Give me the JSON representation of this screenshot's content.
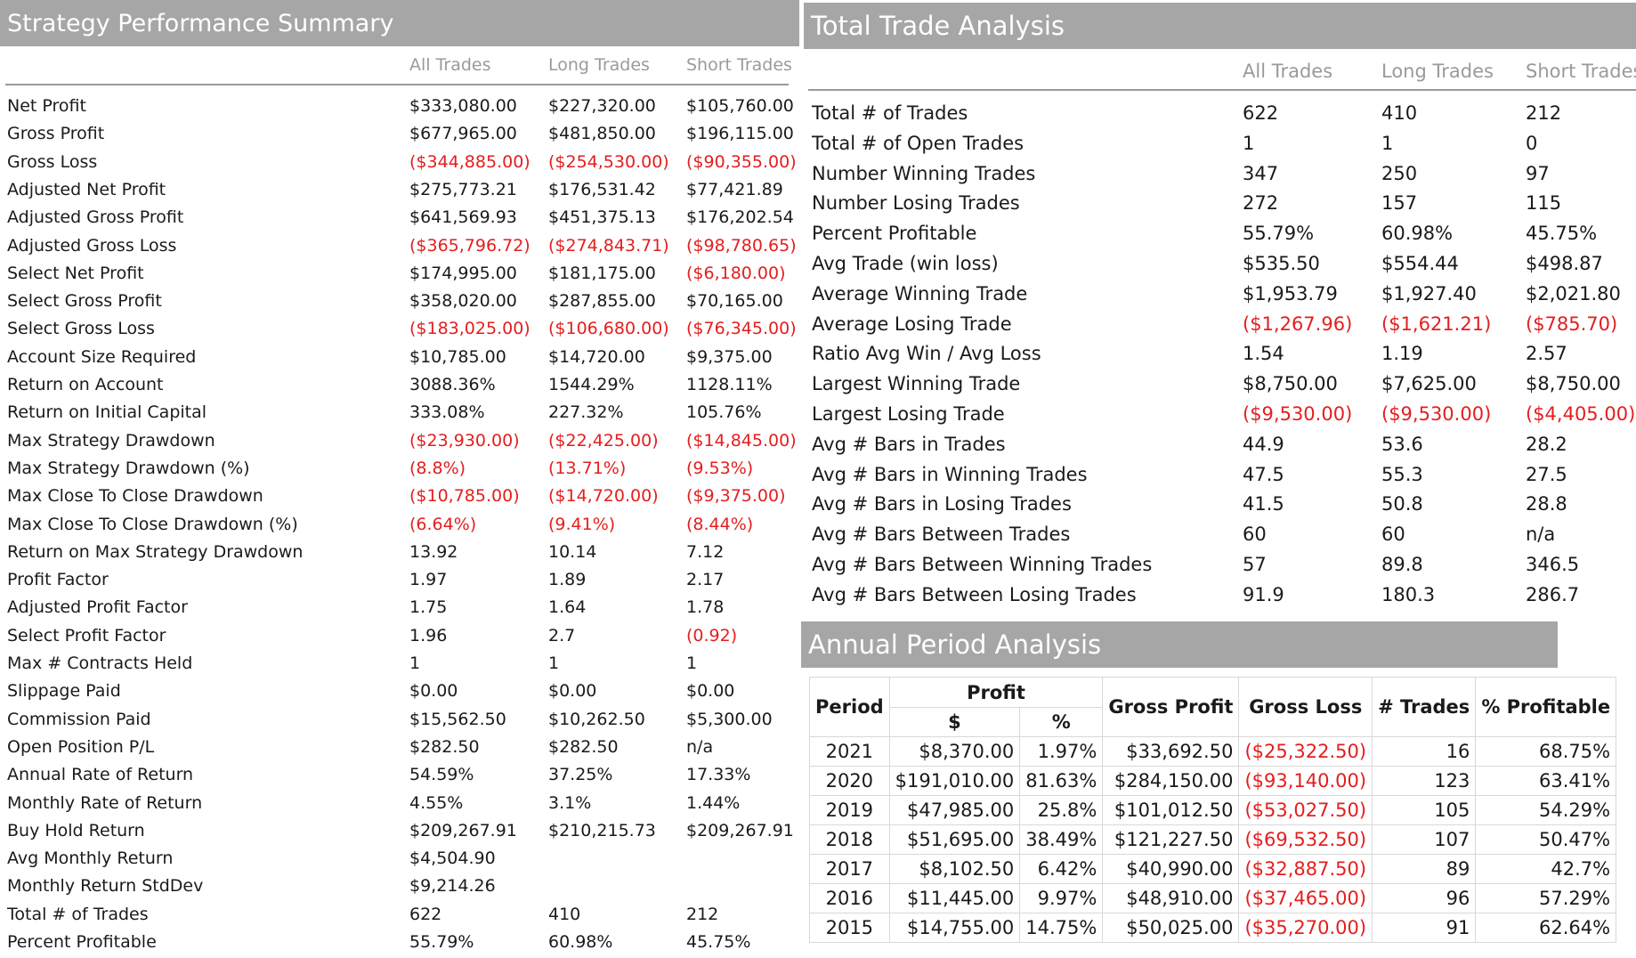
{
  "strategy_summary": {
    "title": "Strategy Performance Summary",
    "columns": [
      "All Trades",
      "Long Trades",
      "Short Trades"
    ],
    "rows": [
      {
        "label": "Net Profit",
        "all": "$333,080.00",
        "long": "$227,320.00",
        "short": "$105,760.00"
      },
      {
        "label": "Gross Profit",
        "all": "$677,965.00",
        "long": "$481,850.00",
        "short": "$196,115.00"
      },
      {
        "label": "Gross Loss",
        "all": "($344,885.00)",
        "long": "($254,530.00)",
        "short": "($90,355.00)"
      },
      {
        "label": "Adjusted Net Profit",
        "all": "$275,773.21",
        "long": "$176,531.42",
        "short": "$77,421.89"
      },
      {
        "label": "Adjusted Gross Profit",
        "all": "$641,569.93",
        "long": "$451,375.13",
        "short": "$176,202.54"
      },
      {
        "label": "Adjusted Gross Loss",
        "all": "($365,796.72)",
        "long": "($274,843.71)",
        "short": "($98,780.65)"
      },
      {
        "label": "Select Net Profit",
        "all": "$174,995.00",
        "long": "$181,175.00",
        "short": "($6,180.00)"
      },
      {
        "label": "Select Gross Profit",
        "all": "$358,020.00",
        "long": "$287,855.00",
        "short": "$70,165.00"
      },
      {
        "label": "Select Gross Loss",
        "all": "($183,025.00)",
        "long": "($106,680.00)",
        "short": "($76,345.00)"
      },
      {
        "label": "Account Size Required",
        "all": "$10,785.00",
        "long": "$14,720.00",
        "short": "$9,375.00"
      },
      {
        "label": "Return on Account",
        "all": "3088.36%",
        "long": "1544.29%",
        "short": "1128.11%"
      },
      {
        "label": "Return on Initial Capital",
        "all": "333.08%",
        "long": "227.32%",
        "short": "105.76%"
      },
      {
        "label": "Max Strategy Drawdown",
        "all": "($23,930.00)",
        "long": "($22,425.00)",
        "short": "($14,845.00)"
      },
      {
        "label": "Max Strategy Drawdown (%)",
        "all": "(8.8%)",
        "long": "(13.71%)",
        "short": "(9.53%)"
      },
      {
        "label": "Max Close To Close Drawdown",
        "all": "($10,785.00)",
        "long": "($14,720.00)",
        "short": "($9,375.00)"
      },
      {
        "label": "Max Close To Close Drawdown (%)",
        "all": "(6.64%)",
        "long": "(9.41%)",
        "short": "(8.44%)"
      },
      {
        "label": "Return on Max Strategy Drawdown",
        "all": "13.92",
        "long": "10.14",
        "short": "7.12"
      },
      {
        "label": "Profit Factor",
        "all": "1.97",
        "long": "1.89",
        "short": "2.17"
      },
      {
        "label": "Adjusted Profit Factor",
        "all": "1.75",
        "long": "1.64",
        "short": "1.78"
      },
      {
        "label": "Select Profit Factor",
        "all": "1.96",
        "long": "2.7",
        "short": "(0.92)"
      },
      {
        "label": "Max # Contracts Held",
        "all": "1",
        "long": "1",
        "short": "1"
      },
      {
        "label": "Slippage Paid",
        "all": "$0.00",
        "long": "$0.00",
        "short": "$0.00"
      },
      {
        "label": "Commission Paid",
        "all": "$15,562.50",
        "long": "$10,262.50",
        "short": "$5,300.00"
      },
      {
        "label": "Open Position P/L",
        "all": "$282.50",
        "long": "$282.50",
        "short": "n/a"
      },
      {
        "label": "Annual Rate of Return",
        "all": "54.59%",
        "long": "37.25%",
        "short": "17.33%"
      },
      {
        "label": "Monthly Rate of Return",
        "all": "4.55%",
        "long": "3.1%",
        "short": "1.44%"
      },
      {
        "label": "Buy  Hold Return",
        "all": "$209,267.91",
        "long": "$210,215.73",
        "short": "$209,267.91"
      },
      {
        "label": "Avg Monthly Return",
        "all": "$4,504.90",
        "long": "",
        "short": ""
      },
      {
        "label": "Monthly Return StdDev",
        "all": "$9,214.26",
        "long": "",
        "short": ""
      },
      {
        "label": "Total # of Trades",
        "all": "622",
        "long": "410",
        "short": "212"
      },
      {
        "label": "Percent Profitable",
        "all": "55.79%",
        "long": "60.98%",
        "short": "45.75%"
      }
    ]
  },
  "total_trade_analysis": {
    "title": "Total Trade Analysis",
    "columns": [
      "All Trades",
      "Long Trades",
      "Short Trades"
    ],
    "rows": [
      {
        "label": "Total # of Trades",
        "all": "622",
        "long": "410",
        "short": "212"
      },
      {
        "label": "Total # of Open Trades",
        "all": "1",
        "long": "1",
        "short": "0"
      },
      {
        "label": "Number Winning Trades",
        "all": "347",
        "long": "250",
        "short": "97"
      },
      {
        "label": "Number Losing Trades",
        "all": "272",
        "long": "157",
        "short": "115"
      },
      {
        "label": "Percent Profitable",
        "all": "55.79%",
        "long": "60.98%",
        "short": "45.75%"
      },
      {
        "label": "Avg Trade (win  loss)",
        "all": "$535.50",
        "long": "$554.44",
        "short": "$498.87"
      },
      {
        "label": "Average Winning Trade",
        "all": "$1,953.79",
        "long": "$1,927.40",
        "short": "$2,021.80"
      },
      {
        "label": "Average Losing Trade",
        "all": "($1,267.96)",
        "long": "($1,621.21)",
        "short": "($785.70)"
      },
      {
        "label": "Ratio Avg Win / Avg Loss",
        "all": "1.54",
        "long": "1.19",
        "short": "2.57"
      },
      {
        "label": "Largest Winning Trade",
        "all": "$8,750.00",
        "long": "$7,625.00",
        "short": "$8,750.00"
      },
      {
        "label": "Largest Losing Trade",
        "all": "($9,530.00)",
        "long": "($9,530.00)",
        "short": "($4,405.00)"
      },
      {
        "label": "Avg # Bars in Trades",
        "all": "44.9",
        "long": "53.6",
        "short": "28.2"
      },
      {
        "label": "Avg # Bars in Winning Trades",
        "all": "47.5",
        "long": "55.3",
        "short": "27.5"
      },
      {
        "label": "Avg # Bars in Losing Trades",
        "all": "41.5",
        "long": "50.8",
        "short": "28.8"
      },
      {
        "label": "Avg # Bars Between Trades",
        "all": "60",
        "long": "60",
        "short": "n/a"
      },
      {
        "label": "Avg # Bars Between Winning Trades",
        "all": "57",
        "long": "89.8",
        "short": "346.5"
      },
      {
        "label": "Avg # Bars Between Losing Trades",
        "all": "91.9",
        "long": "180.3",
        "short": "286.7"
      }
    ]
  },
  "annual_period_analysis": {
    "title": "Annual Period Analysis",
    "headers": {
      "period": "Period",
      "profit": "Profit",
      "dollar": "$",
      "percent": "%",
      "gross_profit": "Gross Profit",
      "gross_loss": "Gross Loss",
      "trades": "# Trades",
      "pct_profitable": "% Profitable"
    },
    "rows": [
      {
        "period": "2021",
        "profit": "$8,370.00",
        "pct": "1.97%",
        "gross_profit": "$33,692.50",
        "gross_loss": "($25,322.50)",
        "trades": "16",
        "pct_profitable": "68.75%"
      },
      {
        "period": "2020",
        "profit": "$191,010.00",
        "pct": "81.63%",
        "gross_profit": "$284,150.00",
        "gross_loss": "($93,140.00)",
        "trades": "123",
        "pct_profitable": "63.41%"
      },
      {
        "period": "2019",
        "profit": "$47,985.00",
        "pct": "25.8%",
        "gross_profit": "$101,012.50",
        "gross_loss": "($53,027.50)",
        "trades": "105",
        "pct_profitable": "54.29%"
      },
      {
        "period": "2018",
        "profit": "$51,695.00",
        "pct": "38.49%",
        "gross_profit": "$121,227.50",
        "gross_loss": "($69,532.50)",
        "trades": "107",
        "pct_profitable": "50.47%"
      },
      {
        "period": "2017",
        "profit": "$8,102.50",
        "pct": "6.42%",
        "gross_profit": "$40,990.00",
        "gross_loss": "($32,887.50)",
        "trades": "89",
        "pct_profitable": "42.7%"
      },
      {
        "period": "2016",
        "profit": "$11,445.00",
        "pct": "9.97%",
        "gross_profit": "$48,910.00",
        "gross_loss": "($37,465.00)",
        "trades": "96",
        "pct_profitable": "57.29%"
      },
      {
        "period": "2015",
        "profit": "$14,755.00",
        "pct": "14.75%",
        "gross_profit": "$50,025.00",
        "gross_loss": "($35,270.00)",
        "trades": "91",
        "pct_profitable": "62.64%"
      }
    ]
  },
  "colors": {
    "header_bg": "#a6a6a6",
    "header_text": "#ffffff",
    "negative": "#e41e1e",
    "column_header": "#9a9a9a"
  }
}
